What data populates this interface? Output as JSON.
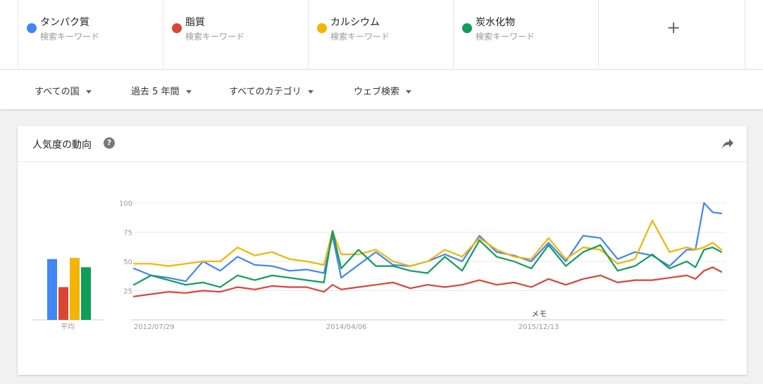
{
  "terms": [
    {
      "name": "タンパク質",
      "sub": "検索キーワード",
      "color": "#4285f4"
    },
    {
      "name": "脂質",
      "sub": "検索キーワード",
      "color": "#db4437"
    },
    {
      "name": "カルシウム",
      "sub": "検索キーワード",
      "color": "#f4b400"
    },
    {
      "name": "炭水化物",
      "sub": "検索キーワード",
      "color": "#0f9d58"
    }
  ],
  "add_term_label": "+",
  "filters": {
    "country": "すべての国",
    "period": "過去 5 年間",
    "category": "すべてのカテゴリ",
    "search_type": "ウェブ検索"
  },
  "card": {
    "title": "人気度の動向",
    "help_icon": "question-circle-icon",
    "share_icon": "share-arrow-icon"
  },
  "chart_data": {
    "type": "line",
    "ylim": [
      0,
      100
    ],
    "y_ticks": [
      25,
      50,
      75,
      100
    ],
    "x_tick_labels": [
      "2012/07/29",
      "2014/04/06",
      "2015/12/13"
    ],
    "x_tick_positions": [
      0,
      89,
      178
    ],
    "x_range": [
      0,
      274
    ],
    "annotation": {
      "label": "メモ",
      "x": 184
    },
    "average": {
      "label": "平均",
      "values": [
        52,
        28,
        53,
        45
      ]
    },
    "series": [
      {
        "name": "タンパク質",
        "color": "#4285f4",
        "x": [
          0,
          8,
          16,
          24,
          32,
          40,
          48,
          56,
          64,
          72,
          80,
          88,
          92,
          96,
          104,
          112,
          120,
          128,
          136,
          144,
          152,
          160,
          168,
          176,
          184,
          192,
          200,
          208,
          216,
          224,
          232,
          240,
          248,
          256,
          260,
          264,
          268,
          272
        ],
        "values": [
          44,
          38,
          36,
          33,
          50,
          42,
          54,
          47,
          46,
          42,
          43,
          40,
          72,
          36,
          47,
          58,
          47,
          46,
          50,
          56,
          50,
          72,
          58,
          55,
          50,
          66,
          50,
          72,
          70,
          52,
          58,
          55,
          46,
          60,
          60,
          100,
          92,
          91
        ]
      },
      {
        "name": "脂質",
        "color": "#db4437",
        "x": [
          0,
          8,
          16,
          24,
          32,
          40,
          48,
          56,
          64,
          72,
          80,
          88,
          92,
          96,
          104,
          112,
          120,
          128,
          136,
          144,
          152,
          160,
          168,
          176,
          184,
          192,
          200,
          208,
          216,
          224,
          232,
          240,
          248,
          256,
          260,
          264,
          268,
          272
        ],
        "values": [
          20,
          22,
          24,
          23,
          25,
          24,
          28,
          26,
          29,
          28,
          28,
          24,
          30,
          26,
          28,
          30,
          32,
          27,
          30,
          28,
          30,
          34,
          30,
          32,
          28,
          35,
          30,
          35,
          38,
          32,
          34,
          34,
          36,
          38,
          35,
          42,
          45,
          41
        ]
      },
      {
        "name": "カルシウム",
        "color": "#f4b400",
        "x": [
          0,
          8,
          16,
          24,
          32,
          40,
          48,
          56,
          64,
          72,
          80,
          88,
          92,
          96,
          104,
          112,
          120,
          128,
          136,
          144,
          152,
          160,
          168,
          176,
          184,
          192,
          200,
          208,
          216,
          224,
          232,
          240,
          248,
          256,
          260,
          264,
          268,
          272
        ],
        "values": [
          48,
          48,
          46,
          48,
          50,
          50,
          62,
          55,
          58,
          52,
          50,
          47,
          76,
          56,
          56,
          60,
          50,
          46,
          50,
          60,
          54,
          70,
          60,
          54,
          52,
          70,
          52,
          62,
          60,
          48,
          52,
          85,
          58,
          62,
          60,
          62,
          66,
          60
        ]
      },
      {
        "name": "炭水化物",
        "color": "#0f9d58",
        "x": [
          0,
          8,
          16,
          24,
          32,
          40,
          48,
          56,
          64,
          72,
          80,
          88,
          92,
          96,
          104,
          112,
          120,
          128,
          136,
          144,
          152,
          160,
          168,
          176,
          184,
          192,
          200,
          208,
          216,
          224,
          232,
          240,
          248,
          256,
          260,
          264,
          268,
          272
        ],
        "values": [
          30,
          38,
          34,
          30,
          32,
          28,
          38,
          34,
          38,
          36,
          34,
          32,
          76,
          44,
          60,
          46,
          46,
          42,
          40,
          54,
          42,
          68,
          54,
          50,
          44,
          64,
          46,
          58,
          64,
          42,
          46,
          56,
          44,
          50,
          45,
          60,
          62,
          58
        ]
      }
    ]
  }
}
